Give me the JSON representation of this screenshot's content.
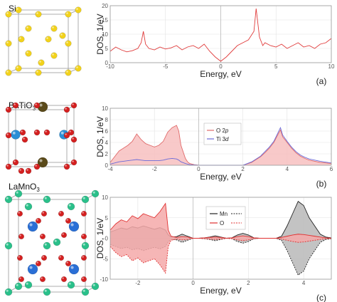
{
  "structures": [
    {
      "name": "Si"
    },
    {
      "name": "BaTiO",
      "sub": "3"
    },
    {
      "name": "LaMnO",
      "sub": "3"
    }
  ],
  "colors": {
    "si_total": "#e03a3a",
    "o_line": "#e06a6a",
    "o_fill": "#f7c0c0",
    "ti_line": "#6a6ad8",
    "mn_line": "#222222",
    "mn_fill": "#b8b8b8",
    "lamno_o_line": "#e03030",
    "lamno_o_fill": "#f4a9a9",
    "si_atom": "#f2d21b",
    "ba_atom": "#5a4a1a",
    "ti_atom": "#2a8fd6",
    "o_atom": "#d42020",
    "la_atom": "#2ac08a",
    "mn_atom": "#2a6fd6"
  },
  "chart_data": [
    {
      "type": "line",
      "panel_label": "(a)",
      "xlabel": "Energy, eV",
      "ylabel": "DOS, 1/eV",
      "xlim": [
        -10,
        10
      ],
      "ylim": [
        0,
        20
      ],
      "xticks": [
        -10,
        -5,
        0,
        5,
        10
      ],
      "yticks": [
        0,
        5,
        10,
        15,
        20
      ],
      "grid": true,
      "series": [
        {
          "name": "",
          "color": "#e03a3a",
          "fill": false,
          "x": [
            -10,
            -9.5,
            -9,
            -8.5,
            -8,
            -7.5,
            -7.2,
            -7,
            -6.8,
            -6.5,
            -6,
            -5.5,
            -5,
            -4.5,
            -4,
            -3.5,
            -3,
            -2.5,
            -2,
            -1.5,
            -1,
            -0.5,
            0,
            0.5,
            1,
            1.5,
            2,
            2.5,
            3,
            3.2,
            3.5,
            3.8,
            4,
            4.5,
            5,
            5.5,
            6,
            6.5,
            7,
            7.5,
            8,
            8.5,
            9,
            9.5,
            10
          ],
          "y": [
            4,
            5.5,
            4.5,
            3.8,
            4.2,
            5,
            7,
            11,
            6.5,
            5,
            4.5,
            5.5,
            4.8,
            5.2,
            6,
            4.5,
            5.5,
            6,
            5,
            6.5,
            4,
            2,
            0.5,
            2,
            4,
            6,
            7,
            8,
            11,
            19,
            9,
            6,
            7,
            6,
            5.5,
            6.5,
            5,
            6,
            7,
            5.5,
            6,
            5,
            6.5,
            7,
            8.5
          ]
        }
      ]
    },
    {
      "type": "area",
      "panel_label": "(b)",
      "xlabel": "Energy, eV",
      "ylabel": "DOS, 1/eV",
      "xlim": [
        -4,
        6
      ],
      "ylim": [
        0,
        10
      ],
      "xticks": [
        -4,
        -2,
        0,
        2,
        4,
        6
      ],
      "yticks": [
        0,
        2,
        4,
        6,
        8,
        10
      ],
      "grid": true,
      "legend": "upper-center",
      "series": [
        {
          "name": "O 2",
          "name_italic": "p",
          "color": "#e06a6a",
          "fill": true,
          "x": [
            -4,
            -3.8,
            -3.6,
            -3.4,
            -3.2,
            -3,
            -2.8,
            -2.6,
            -2.4,
            -2.2,
            -2,
            -1.8,
            -1.6,
            -1.4,
            -1.2,
            -1,
            -0.9,
            -0.8,
            -0.6,
            -0.5,
            -0.4,
            -0.2,
            0,
            2,
            2.4,
            2.8,
            3,
            3.2,
            3.4,
            3.6,
            3.7,
            3.8,
            4,
            4.2,
            4.4,
            4.6,
            4.8,
            5,
            5.5,
            6
          ],
          "y": [
            0.5,
            1.5,
            2.5,
            3,
            3.5,
            4.2,
            5.5,
            4.5,
            3.8,
            3.5,
            3.2,
            3.5,
            4.2,
            5.8,
            6.6,
            7,
            6,
            3.5,
            1.2,
            0.6,
            0.3,
            0.1,
            0,
            0,
            0.5,
            1.5,
            2.2,
            3,
            4,
            5.5,
            6.2,
            5,
            4,
            3,
            2.2,
            1.6,
            1.2,
            0.9,
            0.5,
            0.3
          ]
        },
        {
          "name": "Ti 3",
          "name_italic": "d",
          "color": "#6a6ad8",
          "fill": false,
          "x": [
            -4,
            -3.8,
            -3.6,
            -3.4,
            -3.2,
            -3,
            -2.8,
            -2.6,
            -2.4,
            -2.2,
            -2,
            -1.8,
            -1.6,
            -1.4,
            -1.2,
            -1,
            -0.9,
            -0.8,
            -0.6,
            -0.5,
            -0.4,
            -0.2,
            0,
            2,
            2.4,
            2.8,
            3,
            3.2,
            3.4,
            3.6,
            3.7,
            3.8,
            4,
            4.2,
            4.4,
            4.6,
            4.8,
            5,
            5.5,
            6
          ],
          "y": [
            0.2,
            0.4,
            0.6,
            0.7,
            0.8,
            0.9,
            1,
            0.9,
            0.8,
            0.8,
            0.8,
            0.8,
            0.9,
            1.1,
            1.2,
            1.1,
            0.9,
            0.6,
            0.3,
            0.2,
            0.1,
            0.05,
            0,
            0,
            0.6,
            1.6,
            2.4,
            3.2,
            4.2,
            5.8,
            6.6,
            5.3,
            4.2,
            3.2,
            2.4,
            1.8,
            1.4,
            1.1,
            0.7,
            0.4
          ]
        }
      ]
    },
    {
      "type": "area",
      "panel_label": "(c)",
      "xlabel": "Energy, eV",
      "ylabel": "DOS, 1/eV",
      "xlim": [
        -3,
        5
      ],
      "ylim": [
        -10,
        10
      ],
      "xticks": [
        -2,
        0,
        2,
        4
      ],
      "yticks": [
        -10,
        -5,
        0,
        5,
        10
      ],
      "grid": true,
      "legend": "upper-center",
      "symmetric": true,
      "series": [
        {
          "name": "Mn",
          "color": "#222222",
          "fill": true,
          "x": [
            -3,
            -2.8,
            -2.6,
            -2.4,
            -2.2,
            -2,
            -1.8,
            -1.6,
            -1.4,
            -1.2,
            -1,
            -0.9,
            -0.8,
            -0.6,
            -0.4,
            -0.2,
            0,
            0.2,
            0.4,
            0.6,
            0.8,
            1,
            1.2,
            1.4,
            1.6,
            1.8,
            2,
            2.2,
            2.4,
            3,
            3.2,
            3.4,
            3.6,
            3.8,
            4,
            4.2,
            4.4,
            4.6,
            4.8,
            5
          ],
          "y": [
            1.5,
            2,
            2.5,
            2.2,
            2.8,
            2.5,
            3,
            2.6,
            2.2,
            2.6,
            2,
            0.8,
            0.3,
            0.4,
            1,
            0.5,
            0,
            0,
            0.1,
            0.3,
            0.6,
            0.3,
            0,
            0.1,
            0.8,
            1.2,
            0.8,
            0.1,
            0,
            0,
            0.5,
            3,
            6,
            9,
            8,
            5,
            3,
            1,
            0.3,
            0.1
          ]
        },
        {
          "name": "O",
          "color": "#e03030",
          "fill": true,
          "x": [
            -3,
            -2.8,
            -2.6,
            -2.4,
            -2.2,
            -2,
            -1.8,
            -1.6,
            -1.4,
            -1.2,
            -1,
            -0.9,
            -0.8,
            -0.6,
            -0.4,
            -0.2,
            0,
            0.2,
            0.4,
            0.6,
            0.8,
            1,
            1.2,
            1.4,
            1.6,
            1.8,
            2,
            2.2,
            2.4,
            3,
            3.2,
            3.4,
            3.6,
            3.8,
            4,
            4.2,
            4.4,
            4.6,
            4.8,
            5
          ],
          "y": [
            2,
            3.5,
            4.5,
            4,
            5.5,
            4.8,
            6,
            5.5,
            5,
            6.5,
            8.5,
            2,
            0.5,
            0.2,
            0.4,
            0.3,
            0,
            0,
            0.1,
            0.2,
            0.3,
            0.2,
            0,
            0.1,
            0.4,
            0.6,
            0.4,
            0.1,
            0,
            0,
            0.2,
            0.5,
            0.8,
            1,
            0.9,
            0.7,
            0.5,
            0.3,
            0.1,
            0.05
          ]
        }
      ]
    }
  ]
}
